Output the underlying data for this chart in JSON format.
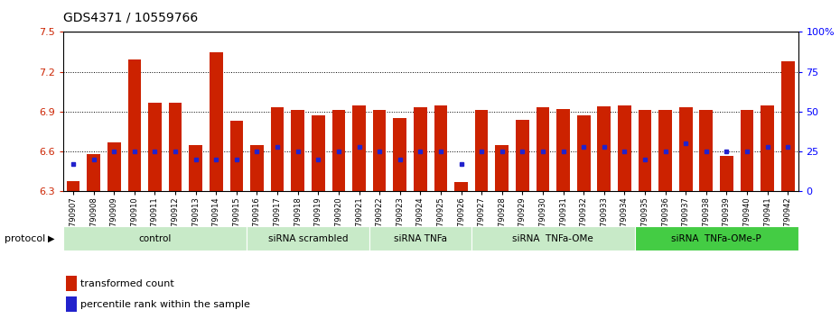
{
  "title": "GDS4371 / 10559766",
  "samples": [
    "GSM790907",
    "GSM790908",
    "GSM790909",
    "GSM790910",
    "GSM790911",
    "GSM790912",
    "GSM790913",
    "GSM790914",
    "GSM790915",
    "GSM790916",
    "GSM790917",
    "GSM790918",
    "GSM790919",
    "GSM790920",
    "GSM790921",
    "GSM790922",
    "GSM790923",
    "GSM790924",
    "GSM790925",
    "GSM790926",
    "GSM790927",
    "GSM790928",
    "GSM790929",
    "GSM790930",
    "GSM790931",
    "GSM790932",
    "GSM790933",
    "GSM790934",
    "GSM790935",
    "GSM790936",
    "GSM790937",
    "GSM790938",
    "GSM790939",
    "GSM790940",
    "GSM790941",
    "GSM790942"
  ],
  "transformed_count": [
    6.38,
    6.58,
    6.67,
    7.29,
    6.97,
    6.97,
    6.65,
    7.35,
    6.83,
    6.65,
    6.93,
    6.91,
    6.87,
    6.91,
    6.95,
    6.91,
    6.85,
    6.93,
    6.95,
    6.37,
    6.91,
    6.65,
    6.84,
    6.93,
    6.92,
    6.87,
    6.94,
    6.95,
    6.91,
    6.91,
    6.93,
    6.91,
    6.57,
    6.91,
    6.95,
    7.28
  ],
  "percentile_rank_pct": [
    17,
    20,
    25,
    25,
    25,
    25,
    20,
    20,
    20,
    25,
    28,
    25,
    20,
    25,
    28,
    25,
    20,
    25,
    25,
    17,
    25,
    25,
    25,
    25,
    25,
    28,
    28,
    25,
    20,
    25,
    30,
    25,
    25,
    25,
    28,
    28
  ],
  "group_boundaries": [
    {
      "label": "control",
      "start": 0,
      "end": 9,
      "color": "#c8eac8"
    },
    {
      "label": "siRNA scrambled",
      "start": 9,
      "end": 15,
      "color": "#c8eac8"
    },
    {
      "label": "siRNA TNFa",
      "start": 15,
      "end": 20,
      "color": "#c8eac8"
    },
    {
      "label": "siRNA  TNFa-OMe",
      "start": 20,
      "end": 28,
      "color": "#c8eac8"
    },
    {
      "label": "siRNA  TNFa-OMe-P",
      "start": 28,
      "end": 36,
      "color": "#44cc44"
    }
  ],
  "ylim_left": [
    6.3,
    7.5
  ],
  "ylim_right": [
    0,
    100
  ],
  "yticks_left": [
    6.3,
    6.6,
    6.9,
    7.2,
    7.5
  ],
  "yticks_right": [
    0,
    25,
    50,
    75,
    100
  ],
  "bar_color": "#cc2200",
  "dot_color": "#2222cc",
  "title_fontsize": 10,
  "legend_items": [
    "transformed count",
    "percentile rank within the sample"
  ]
}
